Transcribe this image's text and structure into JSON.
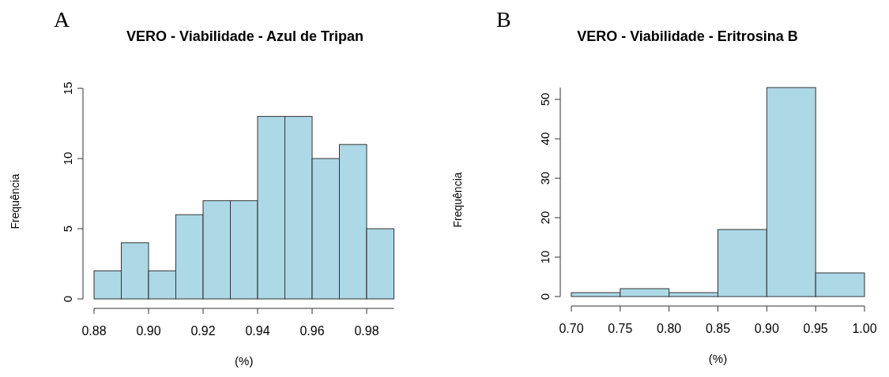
{
  "chart_data": [
    {
      "type": "histogram",
      "title": "VERO - Viabilidade - Azul de Tripan",
      "xlabel": "(%)",
      "ylabel": "Frequência",
      "annotations": [
        "A"
      ],
      "color": "#add8e6",
      "bins": [
        0.88,
        0.89,
        0.9,
        0.91,
        0.92,
        0.93,
        0.94,
        0.95,
        0.96,
        0.97,
        0.98,
        0.99
      ],
      "values": [
        2,
        4,
        2,
        6,
        7,
        7,
        13,
        13,
        10,
        11,
        5
      ],
      "xlim": [
        0.88,
        0.99
      ],
      "xticks": [
        {
          "value": 0.88,
          "label": "0.88"
        },
        {
          "value": 0.9,
          "label": "0.90"
        },
        {
          "value": 0.92,
          "label": "0.92"
        },
        {
          "value": 0.94,
          "label": "0.94"
        },
        {
          "value": 0.96,
          "label": "0.96"
        },
        {
          "value": 0.98,
          "label": "0.98"
        }
      ],
      "ylim": [
        0,
        15
      ],
      "yticks": [
        0,
        5,
        10,
        15
      ],
      "grid": false
    },
    {
      "type": "histogram",
      "title": "VERO - Viabilidade - Eritrosina B",
      "xlabel": "(%)",
      "ylabel": "Frequência",
      "annotations": [
        "B"
      ],
      "color": "#add8e6",
      "bins": [
        0.7,
        0.75,
        0.8,
        0.85,
        0.9,
        0.95,
        1.0
      ],
      "values": [
        1,
        2,
        1,
        17,
        53,
        6
      ],
      "xlim": [
        0.7,
        1.0
      ],
      "xticks": [
        {
          "value": 0.7,
          "label": "0.70"
        },
        {
          "value": 0.75,
          "label": "0.75"
        },
        {
          "value": 0.8,
          "label": "0.80"
        },
        {
          "value": 0.85,
          "label": "0.85"
        },
        {
          "value": 0.9,
          "label": "0.90"
        },
        {
          "value": 0.95,
          "label": "0.95"
        },
        {
          "value": 1.0,
          "label": "1.00"
        }
      ],
      "ylim": [
        0,
        53
      ],
      "yticks": [
        0,
        10,
        20,
        30,
        40,
        50
      ],
      "grid": false
    }
  ]
}
